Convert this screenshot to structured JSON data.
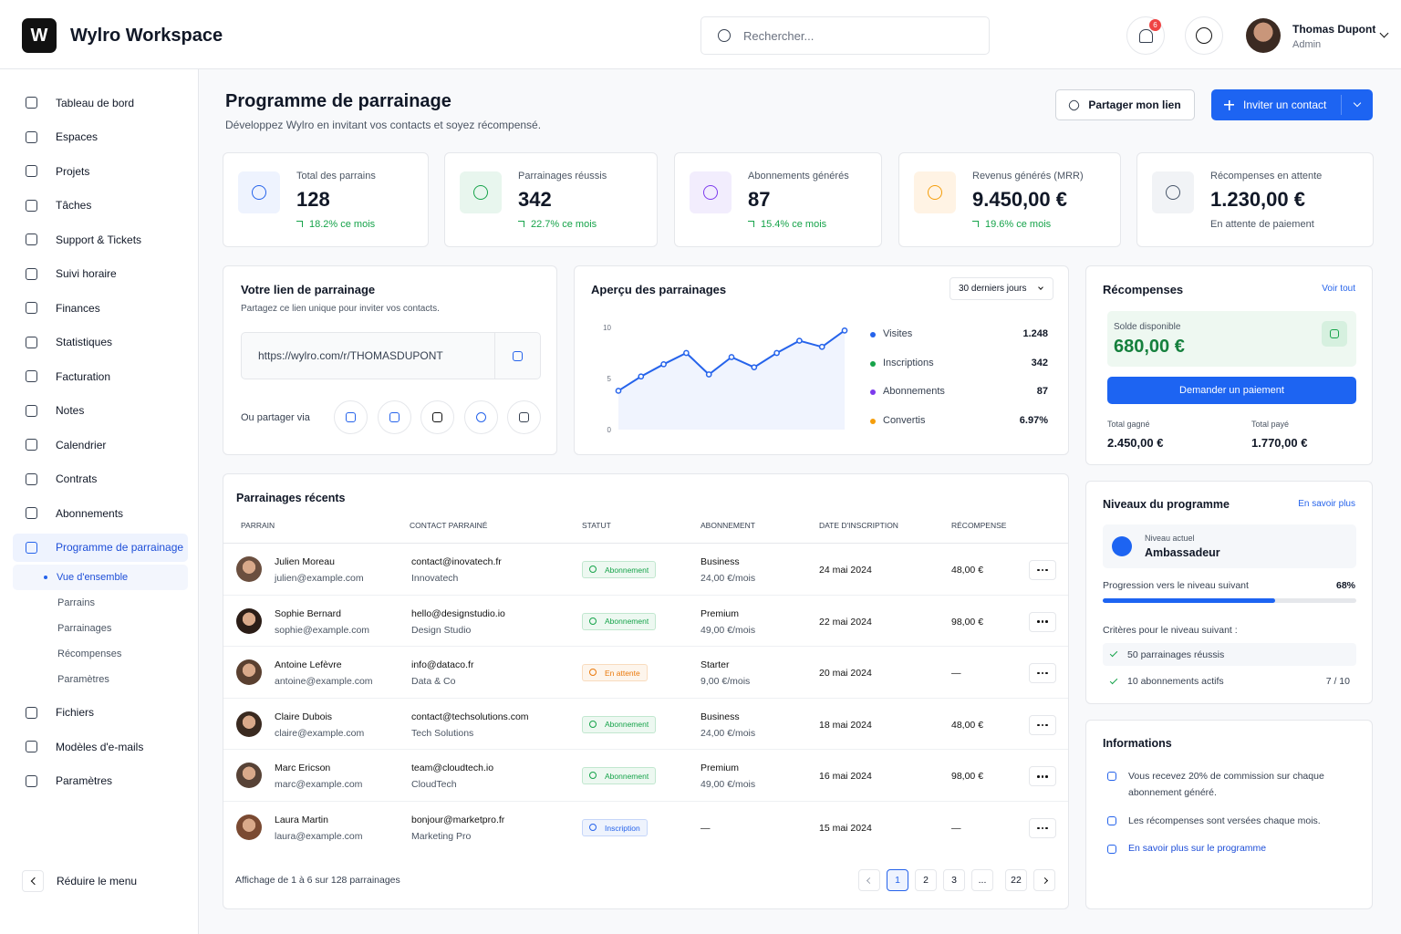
{
  "header": {
    "logo": "W",
    "app_name": "Wylro Workspace",
    "search_placeholder": "Rechercher...",
    "notification_count": 6,
    "user_name": "Thomas Dupont",
    "user_role": "Admin"
  },
  "sidebar": {
    "items": [
      "Tableau de bord",
      "Espaces",
      "Projets",
      "Tâches",
      "Support & Tickets",
      "Suivi horaire",
      "Finances",
      "Statistiques",
      "Facturation",
      "Notes",
      "Calendrier",
      "Contrats",
      "Abonnements"
    ],
    "active": "Programme de parrainage",
    "subitems": [
      "Vue d'ensemble",
      "Parrains",
      "Parrainages",
      "Récompenses",
      "Paramètres"
    ],
    "items_after": [
      "Fichiers",
      "Modèles d'e-mails",
      "Paramètres"
    ],
    "collapse": "Réduire le menu"
  },
  "page": {
    "title": "Programme de parrainage",
    "subtitle": "Développez Wylro en invitant vos contacts et soyez récompensé.",
    "share_button": "Partager mon lien",
    "invite_button": "Inviter un contact"
  },
  "stats": [
    {
      "label": "Total des parrains",
      "value": 128,
      "change": "18.2% ce mois",
      "trend_up": true,
      "color": "#2563eb",
      "bg": "#eef3fe"
    },
    {
      "label": "Parrainages réussis",
      "value": 342,
      "change": "22.7% ce mois",
      "trend_up": true,
      "color": "#16a34a",
      "bg": "#e8f6ee"
    },
    {
      "label": "Abonnements générés",
      "value": 87,
      "change": "15.4% ce mois",
      "trend_up": true,
      "color": "#7c3aed",
      "bg": "#f2edfd"
    },
    {
      "label": "Revenus générés (MRR)",
      "value": "9.450,00 €",
      "change": "19.6% ce mois",
      "trend_up": true,
      "color": "#f59e0b",
      "bg": "#fff3e4"
    },
    {
      "label": "Récompenses en attente",
      "value": "1.230,00 €",
      "change": "En attente de paiement",
      "trend_up": false,
      "color": "#475569",
      "bg": "#f1f3f6"
    }
  ],
  "referral_link": {
    "title": "Votre lien de parrainage",
    "subtitle": "Partagez ce lien unique pour inviter vos contacts.",
    "url": "https://wylro.com/r/THOMASDUPONT",
    "share_label": "Ou partager via"
  },
  "chart_data": {
    "type": "line",
    "title": "Aperçu des parrainages",
    "values": [
      3.8,
      5.2,
      6.4,
      7.5,
      5.4,
      7.1,
      6.1,
      7.5,
      8.7,
      8.1,
      9.7
    ],
    "color": "#2563eb",
    "ylim": [
      0,
      10
    ],
    "yticks": [
      0,
      5,
      10
    ],
    "grid": false
  },
  "overview": {
    "period": "30 derniers jours",
    "metrics": [
      {
        "name": "Visites",
        "value": "1.248",
        "color": "#2563eb"
      },
      {
        "name": "Inscriptions",
        "value": "342",
        "color": "#16a34a"
      },
      {
        "name": "Abonnements",
        "value": "87",
        "color": "#7c3aed"
      },
      {
        "name": "Convertis",
        "value": "6.97%",
        "color": "#f59e0b"
      }
    ]
  },
  "rewards": {
    "title": "Récompenses",
    "link": "Voir tout",
    "balance_label": "Solde disponible",
    "balance": "680,00 €",
    "button": "Demander un paiement",
    "earned_label": "Total gagné",
    "earned": "2.450,00 €",
    "paid_label": "Total payé",
    "paid": "1.770,00 €"
  },
  "levels": {
    "title": "Niveaux du programme",
    "link": "En savoir plus",
    "current_label": "Niveau actuel",
    "current": "Ambassadeur",
    "progress_label": "Progression vers le niveau suivant",
    "progress": {
      "value": 68,
      "label": "68%"
    },
    "criteria_label": "Critères pour le niveau suivant :",
    "criteria": [
      {
        "text": "50 parrainages réussis"
      },
      {
        "text": "10 abonnements actifs",
        "count": "7 / 10"
      }
    ]
  },
  "info": {
    "title": "Informations",
    "items": [
      "Vous recevez 20% de commission sur chaque abonnement généré.",
      "Les récompenses sont versées chaque mois."
    ],
    "link": "En savoir plus sur le programme"
  },
  "table": {
    "title": "Parrainages récents",
    "columns": [
      "PARRAIN",
      "CONTACT PARRAINÉ",
      "STATUT",
      "ABONNEMENT",
      "DATE D'INSCRIPTION",
      "RÉCOMPENSE"
    ],
    "rows": [
      {
        "name": "Julien Moreau",
        "email": "julien@example.com",
        "contact": "contact@inovatech.fr",
        "company": "Innovatech",
        "status": "Abonnement",
        "status_color": "#16a34a",
        "plan": "Business",
        "price": "24,00 €/mois",
        "date": "24 mai 2024",
        "reward": "48,00 €"
      },
      {
        "name": "Sophie Bernard",
        "email": "sophie@example.com",
        "contact": "hello@designstudio.io",
        "company": "Design Studio",
        "status": "Abonnement",
        "status_color": "#16a34a",
        "plan": "Premium",
        "price": "49,00 €/mois",
        "date": "22 mai 2024",
        "reward": "98,00 €"
      },
      {
        "name": "Antoine Lefèvre",
        "email": "antoine@example.com",
        "contact": "info@dataco.fr",
        "company": "Data & Co",
        "status": "En attente",
        "status_color": "#ea7a0c",
        "plan": "Starter",
        "price": "9,00 €/mois",
        "date": "20 mai 2024",
        "reward": "—"
      },
      {
        "name": "Claire Dubois",
        "email": "claire@example.com",
        "contact": "contact@techsolutions.com",
        "company": "Tech Solutions",
        "status": "Abonnement",
        "status_color": "#16a34a",
        "plan": "Business",
        "price": "24,00 €/mois",
        "date": "18 mai 2024",
        "reward": "48,00 €"
      },
      {
        "name": "Marc Ericson",
        "email": "marc@example.com",
        "contact": "team@cloudtech.io",
        "company": "CloudTech",
        "status": "Abonnement",
        "status_color": "#16a34a",
        "plan": "Premium",
        "price": "49,00 €/mois",
        "date": "16 mai 2024",
        "reward": "98,00 €"
      },
      {
        "name": "Laura Martin",
        "email": "laura@example.com",
        "contact": "bonjour@marketpro.fr",
        "company": "Marketing Pro",
        "status": "Inscription",
        "status_color": "#2563eb",
        "plan": "—",
        "price": null,
        "date": "15 mai 2024",
        "reward": "—"
      }
    ],
    "footer": "Affichage de 1 à 6 sur 128 parrainages",
    "pages": [
      "1",
      "2",
      "3",
      "...",
      "22"
    ]
  }
}
